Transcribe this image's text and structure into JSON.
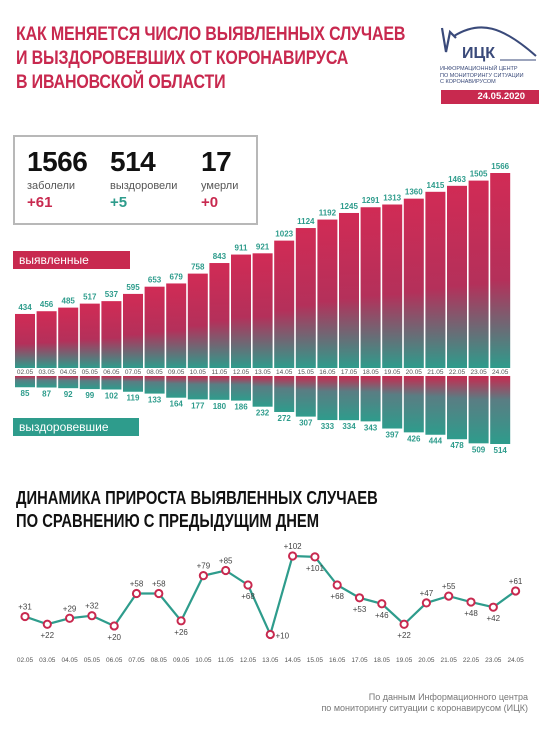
{
  "header": {
    "title_lines": [
      "Как меняется число выявленных случаев",
      "и выздоровевших от коронавируса",
      "в Ивановской области"
    ],
    "logo_text": "ИЦК",
    "logo_sub_lines": [
      "Информационный центр",
      "по мониторингу ситуации",
      "с коронавирусом"
    ],
    "date": "24.05.2020"
  },
  "stats": [
    {
      "value": "1566",
      "label": "заболели",
      "delta": "+61",
      "color": "pink"
    },
    {
      "value": "514",
      "label": "выздоровели",
      "delta": "+5",
      "color": "green"
    },
    {
      "value": "17",
      "label": "умерли",
      "delta": "+0",
      "color": "pink"
    }
  ],
  "labels": {
    "detected": "выявленные случаи",
    "recovered": "выздоровевшие"
  },
  "colors": {
    "accent": "#c8294f",
    "teal": "#2e9c8c",
    "line": "#2e9c8c",
    "marker": "#c8294f"
  },
  "chart_data": [
    {
      "type": "bar",
      "categories": [
        "02.05",
        "03.05",
        "04.05",
        "05.05",
        "06.05",
        "07.05",
        "08.05",
        "09.05",
        "10.05",
        "11.05",
        "12.05",
        "13.05",
        "14.05",
        "15.05",
        "16.05",
        "17.05",
        "18.05",
        "19.05",
        "20.05",
        "21.05",
        "22.05",
        "23.05",
        "24.05"
      ],
      "series": [
        {
          "name": "выявленные случаи",
          "values": [
            434,
            456,
            485,
            517,
            537,
            595,
            653,
            679,
            758,
            843,
            911,
            921,
            1023,
            1124,
            1192,
            1245,
            1291,
            1313,
            1360,
            1415,
            1463,
            1505,
            1566
          ]
        },
        {
          "name": "выздоровевшие",
          "values": [
            85,
            87,
            92,
            99,
            102,
            119,
            133,
            164,
            177,
            180,
            186,
            232,
            272,
            307,
            333,
            334,
            343,
            397,
            426,
            444,
            478,
            509,
            514
          ]
        }
      ]
    },
    {
      "type": "line",
      "title_lines": [
        "Динамика прироста выявленных случаев",
        "по сравнению с предыдущим днем"
      ],
      "categories": [
        "02.05",
        "03.05",
        "04.05",
        "05.05",
        "06.05",
        "07.05",
        "08.05",
        "09.05",
        "10.05",
        "11.05",
        "12.05",
        "13.05",
        "14.05",
        "15.05",
        "16.05",
        "17.05",
        "18.05",
        "19.05",
        "20.05",
        "21.05",
        "22.05",
        "23.05",
        "24.05"
      ],
      "values": [
        31,
        22,
        29,
        32,
        20,
        58,
        58,
        26,
        79,
        85,
        68,
        10,
        102,
        101,
        68,
        53,
        46,
        22,
        47,
        55,
        48,
        42,
        61
      ],
      "value_labels": [
        "+31",
        "+22",
        "+29",
        "+32",
        "+20",
        "+58",
        "+58",
        "+26",
        "+79",
        "+85",
        "+68",
        "+10",
        "+102",
        "+101",
        "+68",
        "+53",
        "+46",
        "+22",
        "+47",
        "+55",
        "+48",
        "+42",
        "+61"
      ]
    }
  ],
  "footer_lines": [
    "По данным Информационного центра",
    "по мониторингу ситуации с коронавирусом (ИЦК)"
  ]
}
